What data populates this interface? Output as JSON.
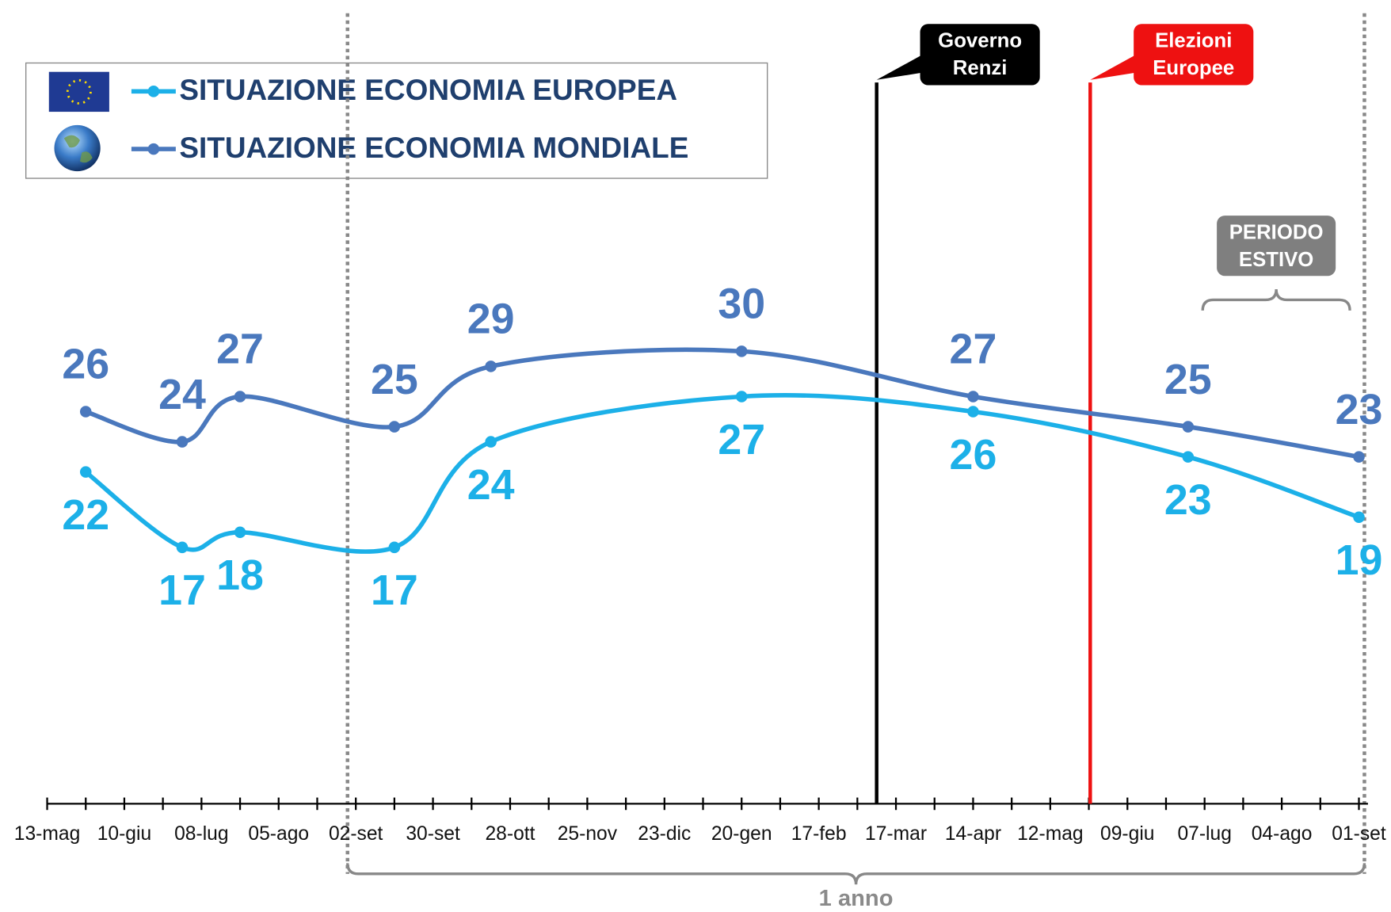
{
  "chart_data": {
    "type": "line",
    "x": [
      14,
      49,
      70,
      126,
      161,
      252,
      336,
      414,
      476
    ],
    "xlim": [
      0,
      478
    ],
    "xticks": [
      {
        "value": 0,
        "label": "13-mag"
      },
      {
        "value": 28,
        "label": "10-giu"
      },
      {
        "value": 56,
        "label": "08-lug"
      },
      {
        "value": 84,
        "label": "05-ago"
      },
      {
        "value": 112,
        "label": "02-set"
      },
      {
        "value": 140,
        "label": "30-set"
      },
      {
        "value": 168,
        "label": "28-ott"
      },
      {
        "value": 196,
        "label": "25-nov"
      },
      {
        "value": 224,
        "label": "23-dic"
      },
      {
        "value": 252,
        "label": "20-gen"
      },
      {
        "value": 280,
        "label": "17-feb"
      },
      {
        "value": 308,
        "label": "17-mar"
      },
      {
        "value": 336,
        "label": "14-apr"
      },
      {
        "value": 364,
        "label": "12-mag"
      },
      {
        "value": 392,
        "label": "09-giu"
      },
      {
        "value": 420,
        "label": "07-lug"
      },
      {
        "value": 448,
        "label": "04-ago"
      },
      {
        "value": 476,
        "label": "01-set"
      }
    ],
    "ylim": [
      0,
      50
    ],
    "series": [
      {
        "name": "SITUAZIONE ECONOMIA EUROPEA",
        "color": "#1cb0e8",
        "values": [
          22,
          17,
          18,
          17,
          24,
          27,
          26,
          23,
          19
        ]
      },
      {
        "name": "SITUAZIONE ECONOMIA MONDIALE",
        "color": "#4a78bd",
        "values": [
          26,
          24,
          27,
          25,
          29,
          30,
          27,
          25,
          23
        ]
      }
    ],
    "annotations": [
      {
        "x": 301,
        "text": [
          "Governo",
          "Renzi"
        ],
        "color": "#000000"
      },
      {
        "x": 378.5,
        "text": [
          "Elezioni",
          "Europee"
        ],
        "color": "#ee1111"
      }
    ],
    "reference_lines": [
      109,
      478
    ],
    "spans": [
      {
        "xrange": [
          418,
          474
        ],
        "text": [
          "PERIODO",
          "ESTIVO"
        ],
        "position": "top"
      },
      {
        "xrange": [
          109,
          478
        ],
        "text": "1 anno",
        "position": "bottom"
      }
    ]
  }
}
